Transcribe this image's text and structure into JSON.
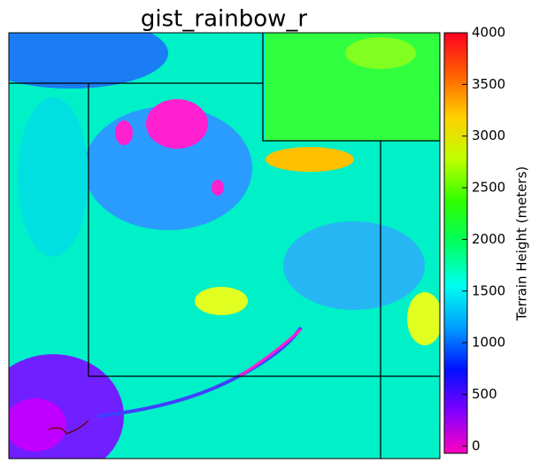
{
  "map": {
    "title": "gist_rainbow_r",
    "colorbar": {
      "label": "Terrain Height (meters)",
      "lim": [
        -70,
        4000
      ],
      "ticks": [
        0,
        500,
        1000,
        1500,
        2000,
        2500,
        3000,
        3500,
        4000
      ],
      "colors": [
        "#ff00bf",
        "#8000ff",
        "#0010ff",
        "#00a0ff",
        "#00fff0",
        "#00ff60",
        "#30ff00",
        "#c0ff00",
        "#ffd000",
        "#ff6000",
        "#ff0020"
      ]
    }
  }
}
